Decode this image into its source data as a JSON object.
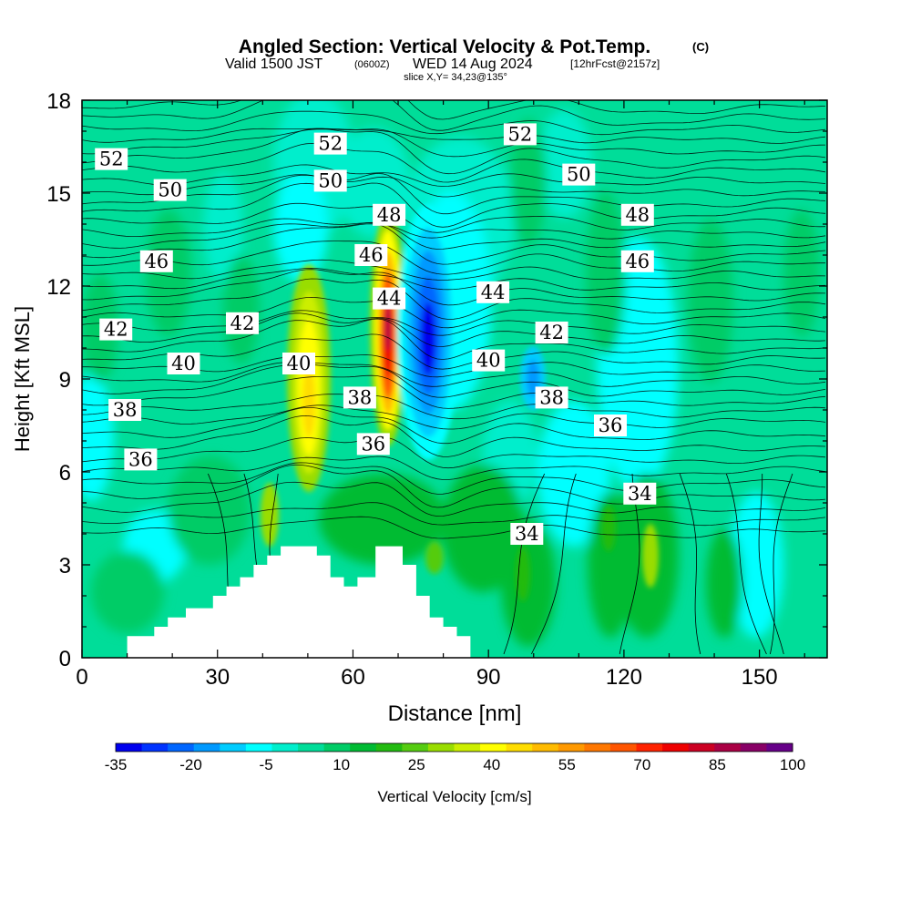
{
  "titles": {
    "main": "Angled Section: Vertical Velocity & Pot.Temp.",
    "main_unit": "(C)",
    "valid_prefix": "Valid 1500 JST",
    "valid_utc": "(0600Z)",
    "valid_date": "WED 14 Aug 2024",
    "valid_fcst": "[12hrFcst@2157z]",
    "slice": "slice X,Y= 34,23@135°"
  },
  "chart_data": {
    "type": "heatmap",
    "xlabel": "Distance [nm]",
    "ylabel": "Height [Kft MSL]",
    "xlim": [
      0,
      165
    ],
    "ylim": [
      0,
      18
    ],
    "x_ticks": [
      "0",
      "30",
      "60",
      "90",
      "120",
      "150"
    ],
    "y_ticks": [
      "0",
      "3",
      "6",
      "9",
      "12",
      "15",
      "18"
    ],
    "x_tick_values": [
      0,
      30,
      60,
      90,
      120,
      150
    ],
    "y_tick_values": [
      0,
      3,
      6,
      9,
      12,
      15,
      18
    ],
    "colorbar": {
      "label": "Vertical Velocity [cm/s]",
      "tick_labels": [
        "-35",
        "-20",
        "-5",
        "10",
        "25",
        "40",
        "55",
        "70",
        "85",
        "100"
      ],
      "colors": [
        "#0000ee",
        "#0033ff",
        "#0066ff",
        "#0099ff",
        "#00ccff",
        "#00ffff",
        "#00eecc",
        "#00dd99",
        "#00cc66",
        "#00bb33",
        "#22bb11",
        "#55cc11",
        "#99dd00",
        "#ccee00",
        "#ffff00",
        "#ffdd00",
        "#ffbb00",
        "#ff9900",
        "#ff7700",
        "#ff5500",
        "#ff2200",
        "#ee0000",
        "#cc0022",
        "#aa0044",
        "#880066",
        "#660088"
      ]
    },
    "contour_labels": [
      {
        "text": "52",
        "x": 6.5,
        "y": 16.1
      },
      {
        "text": "52",
        "x": 55,
        "y": 16.6
      },
      {
        "text": "52",
        "x": 97,
        "y": 16.9
      },
      {
        "text": "50",
        "x": 19.5,
        "y": 15.1
      },
      {
        "text": "50",
        "x": 55,
        "y": 15.4
      },
      {
        "text": "50",
        "x": 110,
        "y": 15.6
      },
      {
        "text": "48",
        "x": 68,
        "y": 14.3
      },
      {
        "text": "48",
        "x": 123,
        "y": 14.3
      },
      {
        "text": "46",
        "x": 16.5,
        "y": 12.8
      },
      {
        "text": "46",
        "x": 64,
        "y": 13.0
      },
      {
        "text": "46",
        "x": 123,
        "y": 12.8
      },
      {
        "text": "44",
        "x": 68,
        "y": 11.6
      },
      {
        "text": "44",
        "x": 91,
        "y": 11.8
      },
      {
        "text": "42",
        "x": 7.5,
        "y": 10.6
      },
      {
        "text": "42",
        "x": 35.5,
        "y": 10.8
      },
      {
        "text": "42",
        "x": 104,
        "y": 10.5
      },
      {
        "text": "40",
        "x": 22.5,
        "y": 9.5
      },
      {
        "text": "40",
        "x": 48,
        "y": 9.5
      },
      {
        "text": "40",
        "x": 90,
        "y": 9.6
      },
      {
        "text": "38",
        "x": 9.5,
        "y": 8.0
      },
      {
        "text": "38",
        "x": 61.5,
        "y": 8.4
      },
      {
        "text": "38",
        "x": 104,
        "y": 8.4
      },
      {
        "text": "36",
        "x": 13,
        "y": 6.4
      },
      {
        "text": "36",
        "x": 64.5,
        "y": 6.9
      },
      {
        "text": "36",
        "x": 117,
        "y": 7.5
      },
      {
        "text": "34",
        "x": 123.5,
        "y": 5.3
      },
      {
        "text": "34",
        "x": 98.5,
        "y": 4.0
      }
    ],
    "terrain": [
      [
        10,
        0.3
      ],
      [
        10,
        0.7
      ],
      [
        16,
        0.7
      ],
      [
        16,
        1.0
      ],
      [
        19,
        1.0
      ],
      [
        19,
        1.3
      ],
      [
        23,
        1.3
      ],
      [
        23,
        1.6
      ],
      [
        29,
        1.6
      ],
      [
        29,
        2.0
      ],
      [
        32,
        2.0
      ],
      [
        32,
        2.3
      ],
      [
        35,
        2.3
      ],
      [
        35,
        2.6
      ],
      [
        38,
        2.6
      ],
      [
        38,
        3.0
      ],
      [
        41,
        3.0
      ],
      [
        41,
        3.3
      ],
      [
        44,
        3.3
      ],
      [
        44,
        3.6
      ],
      [
        52,
        3.6
      ],
      [
        52,
        3.3
      ],
      [
        55,
        3.3
      ],
      [
        55,
        2.6
      ],
      [
        58,
        2.6
      ],
      [
        58,
        2.3
      ],
      [
        61,
        2.3
      ],
      [
        61,
        2.6
      ],
      [
        65,
        2.6
      ],
      [
        65,
        3.6
      ],
      [
        71,
        3.6
      ],
      [
        71,
        3.0
      ],
      [
        74,
        3.0
      ],
      [
        74,
        2.0
      ],
      [
        77,
        2.0
      ],
      [
        77,
        1.3
      ],
      [
        80,
        1.3
      ],
      [
        80,
        1.0
      ],
      [
        83,
        1.0
      ],
      [
        83,
        0.7
      ],
      [
        86,
        0.7
      ],
      [
        86,
        0.3
      ]
    ]
  }
}
